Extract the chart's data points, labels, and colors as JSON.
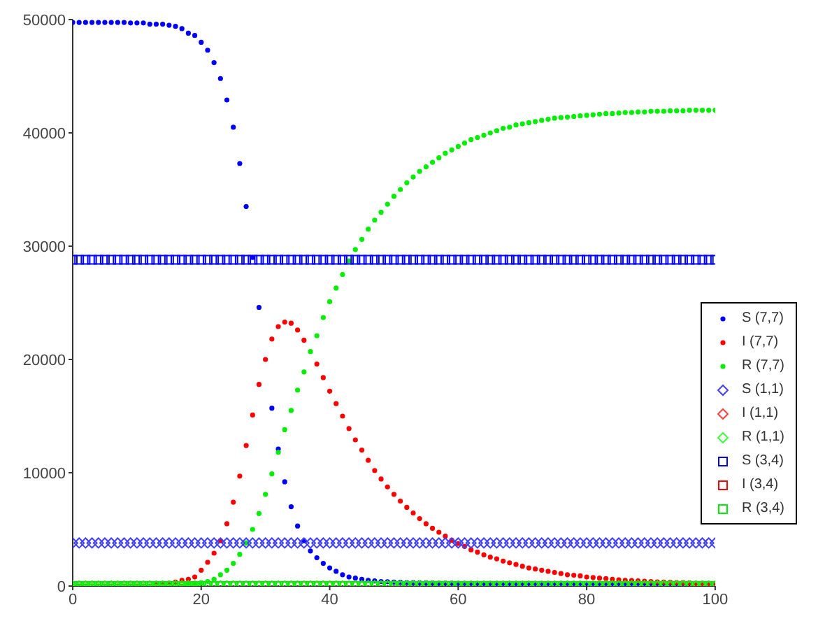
{
  "chart_data": {
    "type": "scatter",
    "xlim": [
      0,
      100
    ],
    "xticks": [
      0,
      20,
      40,
      60,
      80,
      100
    ],
    "ylim": [
      0,
      50000
    ],
    "yticks": [
      0,
      10000,
      20000,
      30000,
      40000,
      50000
    ],
    "grid": false,
    "legend": "right",
    "x": [
      0,
      1,
      2,
      3,
      4,
      5,
      6,
      7,
      8,
      9,
      10,
      11,
      12,
      13,
      14,
      15,
      16,
      17,
      18,
      19,
      20,
      21,
      22,
      23,
      24,
      25,
      26,
      27,
      28,
      29,
      30,
      31,
      32,
      33,
      34,
      35,
      36,
      37,
      38,
      39,
      40,
      41,
      42,
      43,
      44,
      45,
      46,
      47,
      48,
      49,
      50,
      51,
      52,
      53,
      54,
      55,
      56,
      57,
      58,
      59,
      60,
      61,
      62,
      63,
      64,
      65,
      66,
      67,
      68,
      69,
      70,
      71,
      72,
      73,
      74,
      75,
      76,
      77,
      78,
      79,
      80,
      81,
      82,
      83,
      84,
      85,
      86,
      87,
      88,
      89,
      90,
      91,
      92,
      93,
      94,
      95,
      96,
      97,
      98,
      99,
      100
    ],
    "series": [
      {
        "name": "S (7,7)",
        "color": "#0000ff",
        "marker": "circle",
        "values": [
          49750,
          49750,
          49750,
          49750,
          49750,
          49750,
          49750,
          49750,
          49750,
          49700,
          49700,
          49700,
          49600,
          49600,
          49600,
          49500,
          49400,
          49200,
          48800,
          48600,
          48000,
          47300,
          46200,
          44800,
          42900,
          40500,
          37300,
          33500,
          29000,
          24600,
          null,
          15700,
          12100,
          9200,
          7000,
          5300,
          4000,
          3100,
          2500,
          2000,
          1600,
          1300,
          1000,
          800,
          700,
          600,
          500,
          450,
          400,
          380,
          350,
          330,
          310,
          300,
          290,
          280,
          270,
          260,
          250,
          250,
          240,
          240,
          230,
          230,
          230,
          220,
          220,
          220,
          220,
          210,
          210,
          200,
          200,
          200,
          200,
          200,
          200,
          200,
          200,
          200,
          200,
          200,
          200,
          200,
          200,
          200,
          200,
          200,
          200,
          200,
          200,
          200,
          200,
          200,
          200,
          200,
          200,
          null,
          null,
          null,
          null
        ]
      },
      {
        "name": "I (7,7)",
        "color": "#ff0000",
        "marker": "circle",
        "values": [
          null,
          0,
          0,
          0,
          0,
          0,
          0,
          0,
          0,
          0,
          0,
          0,
          0,
          100,
          150,
          250,
          350,
          500,
          600,
          800,
          1400,
          2100,
          2900,
          4000,
          5500,
          7400,
          9700,
          12400,
          15100,
          17800,
          20000,
          21800,
          22900,
          23300,
          23200,
          22600,
          21700,
          null,
          19600,
          18400,
          17200,
          16100,
          15000,
          13900,
          12900,
          12000,
          11100,
          10200,
          9450,
          8750,
          8100,
          7500,
          6950,
          6450,
          5950,
          5500,
          5100,
          4750,
          4400,
          4050,
          3750,
          3500,
          3200,
          3000,
          2750,
          2550,
          2400,
          2200,
          2050,
          1900,
          1750,
          1600,
          1500,
          1400,
          1300,
          1200,
          1100,
          1000,
          950,
          900,
          800,
          750,
          700,
          650,
          600,
          550,
          500,
          480,
          450,
          420,
          400,
          370,
          350,
          330,
          310,
          300,
          280,
          260,
          250,
          240,
          230
        ]
      },
      {
        "name": "R (7,7)",
        "color": "#00ee00",
        "marker": "circle",
        "values": [
          0,
          0,
          0,
          0,
          0,
          0,
          0,
          0,
          0,
          0,
          0,
          0,
          0,
          0,
          0,
          0,
          0,
          0,
          100,
          200,
          300,
          400,
          600,
          1000,
          1400,
          2000,
          2800,
          3800,
          5000,
          6400,
          8100,
          9900,
          11800,
          13800,
          15500,
          17300,
          18900,
          20700,
          22100,
          23700,
          25100,
          26300,
          27500,
          28700,
          29700,
          30600,
          31500,
          32300,
          33000,
          33700,
          34400,
          35000,
          35600,
          36100,
          36600,
          37000,
          37400,
          37800,
          38200,
          38500,
          38800,
          39100,
          39400,
          39600,
          39800,
          40000,
          40200,
          40400,
          40500,
          40700,
          40800,
          40900,
          41000,
          41100,
          41200,
          41300,
          41350,
          41400,
          41450,
          41500,
          41550,
          41600,
          41650,
          41700,
          41700,
          41750,
          41800,
          41800,
          41850,
          41850,
          41900,
          41900,
          41900,
          41950,
          41950,
          41950,
          42000,
          42000,
          42000,
          42000,
          42000
        ]
      },
      {
        "name": "S (1,1)",
        "color": "#4040ff",
        "marker": "diamond",
        "values": [
          3800,
          3800,
          3800,
          3800,
          3800,
          3800,
          3800,
          3800,
          3800,
          3800,
          3800,
          3800,
          3800,
          3800,
          3800,
          3800,
          3800,
          3800,
          3800,
          3800,
          3800,
          3800,
          3800,
          3800,
          3800,
          3800,
          3800,
          3800,
          3800,
          3800,
          3800,
          3800,
          3800,
          3800,
          3800,
          3800,
          3800,
          3800,
          3800,
          3800,
          3800,
          3800,
          3800,
          3800,
          3800,
          3800,
          3800,
          3800,
          3800,
          3800,
          3800,
          3800,
          3800,
          3800,
          3800,
          3800,
          3800,
          3800,
          3800,
          3800,
          3800,
          3800,
          3800,
          3800,
          3800,
          3800,
          3800,
          3800,
          3800,
          3800,
          3800,
          3800,
          3800,
          3800,
          3800,
          3800,
          3800,
          3800,
          3800,
          3800,
          3800,
          3800,
          3800,
          3800,
          3800,
          3800,
          3800,
          3800,
          3800,
          3800,
          3800,
          3800,
          3800,
          3800,
          3800,
          3800,
          3800,
          3800,
          3800,
          3800,
          3800
        ]
      },
      {
        "name": "I (1,1)",
        "color": "#ff4040",
        "marker": "diamond",
        "values": [
          0,
          0,
          0,
          0,
          0,
          0,
          0,
          0,
          0,
          0,
          0,
          0,
          0,
          0,
          0,
          0,
          0,
          0,
          0,
          0,
          0,
          0,
          0,
          0,
          0,
          0,
          0,
          0,
          0,
          0,
          0,
          0,
          0,
          0,
          0,
          0,
          0,
          0,
          0,
          0,
          0,
          0,
          0,
          0,
          0,
          0,
          0,
          0,
          0,
          0,
          0,
          0,
          0,
          0,
          0,
          0,
          0,
          0,
          0,
          0,
          0,
          0,
          0,
          0,
          0,
          0,
          0,
          0,
          0,
          0,
          0,
          0,
          0,
          0,
          0,
          0,
          0,
          0,
          0,
          0,
          0,
          0,
          0,
          0,
          0,
          0,
          0,
          0,
          0,
          0,
          0,
          0,
          0,
          0,
          0,
          0,
          0,
          0,
          0,
          0,
          null
        ]
      },
      {
        "name": "R (1,1)",
        "color": "#40ff40",
        "marker": "diamond",
        "values": [
          0,
          0,
          0,
          0,
          0,
          0,
          0,
          0,
          0,
          0,
          0,
          0,
          0,
          0,
          0,
          0,
          0,
          0,
          0,
          0,
          0,
          0,
          0,
          0,
          0,
          0,
          0,
          0,
          0,
          0,
          0,
          0,
          0,
          0,
          0,
          0,
          0,
          0,
          0,
          0,
          0,
          0,
          0,
          0,
          0,
          0,
          0,
          0,
          0,
          0,
          0,
          0,
          0,
          0,
          0,
          0,
          0,
          0,
          0,
          0,
          0,
          0,
          0,
          0,
          0,
          0,
          0,
          0,
          0,
          0,
          0,
          0,
          0,
          0,
          0,
          0,
          0,
          0,
          0,
          0,
          0,
          0,
          0,
          0,
          0,
          0,
          0,
          0,
          0,
          0,
          0,
          0,
          0,
          0,
          0,
          0,
          0,
          0,
          0,
          0,
          0
        ]
      },
      {
        "name": "S (3,4)",
        "color": "#0000ff",
        "marker": "square",
        "values": [
          28800,
          28800,
          28800,
          28800,
          28800,
          28800,
          28800,
          28800,
          28800,
          28800,
          28800,
          28800,
          28800,
          28800,
          28800,
          28800,
          28800,
          28800,
          28800,
          28800,
          28800,
          28800,
          28800,
          28800,
          28800,
          28800,
          28800,
          28800,
          28800,
          28800,
          28800,
          28800,
          28800,
          28800,
          28800,
          28800,
          28800,
          28800,
          28800,
          28800,
          28800,
          28800,
          28800,
          28800,
          28800,
          28800,
          28800,
          28800,
          28800,
          28800,
          28800,
          28800,
          28800,
          28800,
          28800,
          28800,
          28800,
          28800,
          28800,
          28800,
          28800,
          28800,
          28800,
          28800,
          28800,
          28800,
          28800,
          28800,
          28800,
          28800,
          28800,
          28800,
          28800,
          28800,
          28800,
          28800,
          28800,
          28800,
          28800,
          28800,
          28800,
          28800,
          28800,
          28800,
          28800,
          28800,
          28800,
          28800,
          28800,
          28800,
          28800,
          28800,
          28800,
          28800,
          28800,
          28800,
          28800,
          28800,
          28800,
          28800,
          28800
        ]
      },
      {
        "name": "I (3,4)",
        "color": "#ff0000",
        "marker": "square",
        "values": [
          null,
          null,
          null,
          null,
          null,
          null,
          null,
          null,
          null,
          null,
          null,
          null,
          null,
          null,
          null,
          null,
          null,
          null,
          null,
          null,
          null,
          null,
          null,
          null,
          null,
          null,
          null,
          null,
          null,
          null,
          null,
          null,
          null,
          null,
          null,
          null,
          null,
          null,
          null,
          null,
          null,
          null,
          null,
          null,
          null,
          null,
          null,
          null,
          null,
          null,
          null,
          null,
          null,
          null,
          null,
          null,
          null,
          null,
          null,
          null,
          null,
          null,
          null,
          null,
          null,
          null,
          null,
          null,
          null,
          null,
          null,
          null,
          null,
          null,
          null,
          null,
          null,
          null,
          null,
          null,
          null,
          null,
          null,
          null,
          null,
          null,
          null,
          null,
          null,
          null,
          null,
          null,
          null,
          null,
          null,
          null,
          null,
          null,
          null,
          null,
          null
        ]
      },
      {
        "name": "R (3,4)",
        "color": "#00ee00",
        "marker": "square",
        "values": [
          0,
          0,
          0,
          0,
          0,
          0,
          0,
          0,
          0,
          0,
          0,
          0,
          0,
          0,
          0,
          0,
          0,
          0,
          0,
          0,
          0,
          0,
          0,
          0,
          0,
          0,
          0,
          0,
          0,
          0,
          0,
          0,
          0,
          0,
          0,
          0,
          0,
          0,
          0,
          0,
          0,
          0,
          0,
          0,
          0,
          0,
          0,
          0,
          0,
          0,
          0,
          0,
          0,
          0,
          0,
          0,
          0,
          0,
          0,
          0,
          0,
          0,
          0,
          0,
          0,
          0,
          0,
          0,
          0,
          0,
          0,
          0,
          0,
          0,
          0,
          0,
          0,
          0,
          0,
          0,
          0,
          0,
          0,
          0,
          0,
          0,
          0,
          0,
          0,
          0,
          0,
          0,
          0,
          0,
          0,
          0,
          0,
          0,
          0,
          0,
          0
        ]
      }
    ]
  }
}
